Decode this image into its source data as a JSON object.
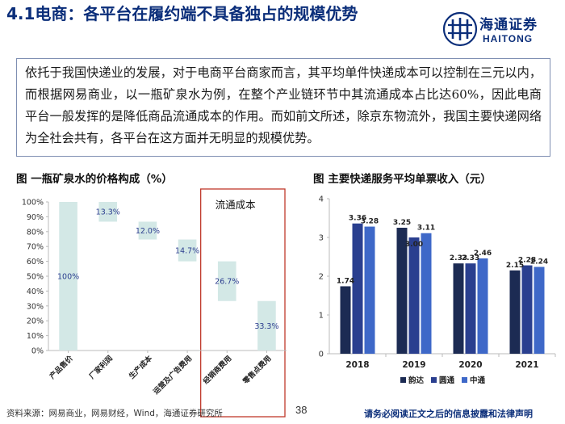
{
  "header": {
    "title": "4.1电商：各平台在履约端不具备独占的规模优势",
    "logo_cn": "海通证券",
    "logo_en": "HAITONG"
  },
  "body_text": "依托于我国快递业的发展，对于电商平台商家而言，其平均单件快递成本可以控制在三元以内，而根据网易商业，以一瓶矿泉水为例，在整个产业链环节中其流通成本占比达60%，因此电商平台一般发挥的是降低商品流通成本的作用。而如前文所述，除京东物流外，我国主要快递网络为全社会共有，各平台在这方面并无明显的规模优势。",
  "footer": {
    "source": "资料来源：网易商业，网易财经，Wind，海通证券研究所",
    "page": "38",
    "disclaimer": "请务必阅读正文之后的信息披露和法律声明"
  },
  "colors": {
    "brand_blue": "#0b2e7a",
    "waterfall_bar": "#d3e8e6",
    "highlight_box": "#c0392b",
    "series_yunda": "#1c2b53",
    "series_yuantong": "#2a3f8f",
    "series_zhongtong": "#3e68c8"
  },
  "chart_data": [
    {
      "type": "bar",
      "subtype": "waterfall",
      "title": "图 一瓶矿泉水的价格构成（%）",
      "categories": [
        "产品售价",
        "厂家利润",
        "生产成本",
        "运营及广告费用",
        "经销商费用",
        "零售点费用"
      ],
      "values": [
        100,
        13.3,
        12.0,
        14.7,
        26.7,
        33.3
      ],
      "bases": [
        0,
        86.7,
        74.7,
        60.0,
        33.3,
        0
      ],
      "data_labels": [
        "100%",
        "13.3%",
        "12.0%",
        "14.7%",
        "26.7%",
        "33.3%"
      ],
      "yticks": [
        "0%",
        "10%",
        "20%",
        "30%",
        "40%",
        "50%",
        "60%",
        "70%",
        "80%",
        "90%",
        "100%"
      ],
      "ylim": [
        0,
        100
      ],
      "annotation": "流通成本"
    },
    {
      "type": "bar",
      "title": "图 主要快递服务平均单票收入（元）",
      "categories": [
        "2018",
        "2019",
        "2020",
        "2021"
      ],
      "series": [
        {
          "name": "韵达",
          "values": [
            1.74,
            3.25,
            2.33,
            2.15
          ]
        },
        {
          "name": "圆通",
          "values": [
            3.36,
            3.0,
            2.33,
            2.28
          ]
        },
        {
          "name": "中通",
          "values": [
            3.28,
            3.11,
            2.46,
            2.24
          ]
        }
      ],
      "data_labels": [
        [
          "1.74",
          "3.25",
          "2.33",
          "2.15"
        ],
        [
          "3.36",
          "3.00",
          "2.33",
          "2.28"
        ],
        [
          "3.28",
          "3.11",
          "2.46",
          "2.24"
        ]
      ],
      "yticks": [
        "0",
        "1",
        "2",
        "3",
        "4"
      ],
      "ylim": [
        0,
        4
      ],
      "legend": "bottom"
    }
  ]
}
